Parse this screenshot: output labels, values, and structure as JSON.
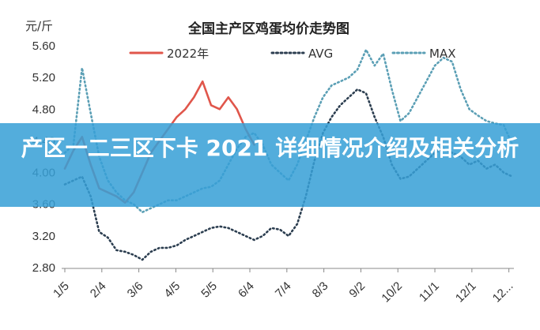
{
  "banner": {
    "title": "产区一二三区下卡 2021 详细情况介绍及相关分析",
    "background": "#37a0d6"
  },
  "chart_data": {
    "type": "line",
    "title": "全国主产区鸡蛋均价走势图",
    "ylabel": "元/斤",
    "xlabel": "",
    "ylim": [
      2.8,
      5.6
    ],
    "yticks": [
      "5.60",
      "5.20",
      "4.80",
      "4.40",
      "4.00",
      "3.60",
      "3.20",
      "2.80"
    ],
    "xlim": [
      1,
      53
    ],
    "categories": [
      "1/5",
      "2/4",
      "3/6",
      "4/5",
      "5/5",
      "6/4",
      "7/4",
      "8/3",
      "9/2",
      "10/2",
      "11/1",
      "12/1",
      "12..."
    ],
    "category_weeks": [
      1,
      5.3,
      9.6,
      13.9,
      18.2,
      22.5,
      26.8,
      31.1,
      35.4,
      39.7,
      44,
      48.3,
      52.6
    ],
    "grid": false,
    "legend": "top",
    "series": [
      {
        "name": "2022年",
        "style": "solid",
        "color": "#e0564b",
        "x": [
          1,
          2,
          3,
          4,
          5,
          6,
          7,
          8,
          9,
          10,
          11,
          12,
          13,
          14,
          15,
          16,
          17,
          18,
          19,
          20,
          21,
          22,
          23
        ],
        "values": [
          4.05,
          4.28,
          4.45,
          4.1,
          3.8,
          3.75,
          3.7,
          3.62,
          3.75,
          4.0,
          4.25,
          4.4,
          4.55,
          4.7,
          4.8,
          4.95,
          5.15,
          4.85,
          4.8,
          4.95,
          4.8,
          4.55,
          4.35
        ],
        "color_gray": "#8a8f98"
      },
      {
        "name": "AVG",
        "style": "dotted",
        "color": "#2c3e50",
        "x": [
          1,
          2,
          3,
          4,
          5,
          6,
          7,
          8,
          9,
          10,
          11,
          12,
          13,
          14,
          15,
          16,
          17,
          18,
          19,
          20,
          21,
          22,
          23,
          24,
          25,
          26,
          27,
          28,
          29,
          30,
          31,
          32,
          33,
          34,
          35,
          36,
          37,
          38,
          39,
          40,
          41,
          42,
          43,
          44,
          45,
          46,
          47,
          48,
          49,
          50,
          51,
          52,
          53
        ],
        "values": [
          3.85,
          3.9,
          3.95,
          3.7,
          3.25,
          3.18,
          3.02,
          3.0,
          2.96,
          2.9,
          3.0,
          3.05,
          3.05,
          3.08,
          3.15,
          3.2,
          3.25,
          3.3,
          3.32,
          3.3,
          3.25,
          3.2,
          3.15,
          3.2,
          3.3,
          3.28,
          3.2,
          3.35,
          3.7,
          4.15,
          4.5,
          4.7,
          4.85,
          4.95,
          5.05,
          5.0,
          4.7,
          4.45,
          4.1,
          3.92,
          3.95,
          4.05,
          4.15,
          4.25,
          4.3,
          4.25,
          4.2,
          4.1,
          4.15,
          4.05,
          4.1,
          4.0,
          3.95
        ]
      },
      {
        "name": "MAX",
        "style": "dotted",
        "color": "#5b9fb5",
        "x": [
          1,
          2,
          3,
          4,
          5,
          6,
          7,
          8,
          9,
          10,
          11,
          12,
          13,
          14,
          15,
          16,
          17,
          18,
          19,
          20,
          21,
          22,
          23,
          24,
          25,
          26,
          27,
          28,
          29,
          30,
          31,
          32,
          33,
          34,
          35,
          36,
          37,
          38,
          39,
          40,
          41,
          42,
          43,
          44,
          45,
          46,
          47,
          48,
          49,
          50,
          51,
          52,
          53
        ],
        "values": [
          4.25,
          4.35,
          5.32,
          4.75,
          4.2,
          3.9,
          3.75,
          3.65,
          3.6,
          3.5,
          3.55,
          3.6,
          3.65,
          3.65,
          3.7,
          3.75,
          3.8,
          3.82,
          3.9,
          4.1,
          4.3,
          4.45,
          4.5,
          4.35,
          4.1,
          4.0,
          3.9,
          4.1,
          4.4,
          4.7,
          4.95,
          5.1,
          5.15,
          5.2,
          5.3,
          5.55,
          5.35,
          5.5,
          5.05,
          4.65,
          4.75,
          4.95,
          5.15,
          5.35,
          5.45,
          5.4,
          5.05,
          4.8,
          4.72,
          4.65,
          4.62,
          4.6,
          4.35
        ]
      }
    ]
  }
}
